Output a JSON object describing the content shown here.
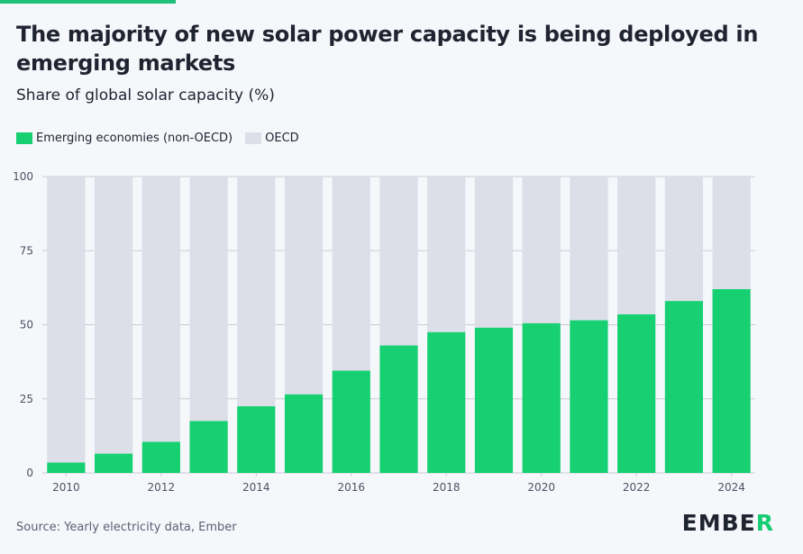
{
  "header": {
    "title": "The majority of new solar power capacity is being deployed in emerging markets",
    "subtitle": "Share of global solar capacity (%)"
  },
  "legend": {
    "series_a": "Emerging economies (non-OECD)",
    "series_b": "OECD"
  },
  "footer": {
    "source": "Source: Yearly electricity data, Ember",
    "logo_prefix": "EMBE",
    "logo_mark": "R"
  },
  "colors": {
    "emerging": "#16d072",
    "oecd": "#dcdee8",
    "accent": "#1ec07a",
    "grid": "#c9ccd6",
    "background": "#f5f7fb"
  },
  "chart_data": {
    "type": "bar",
    "stacked": true,
    "title": "The majority of new solar power capacity is being deployed in emerging markets",
    "ylabel": "Share of global solar capacity (%)",
    "xlabel": "",
    "ylim": [
      0,
      100
    ],
    "yticks": [
      0,
      25,
      50,
      75,
      100
    ],
    "xtick_labels": [
      "2010",
      "2012",
      "2014",
      "2016",
      "2018",
      "2020",
      "2022",
      "2024"
    ],
    "categories": [
      "2010",
      "2011",
      "2012",
      "2013",
      "2014",
      "2015",
      "2016",
      "2017",
      "2018",
      "2019",
      "2020",
      "2021",
      "2022",
      "2023",
      "2024"
    ],
    "series": [
      {
        "name": "Emerging economies (non-OECD)",
        "values": [
          3.5,
          6.5,
          10.5,
          17.5,
          22.5,
          26.5,
          34.5,
          43,
          47.5,
          49,
          50.5,
          51.5,
          53.5,
          58,
          62
        ]
      },
      {
        "name": "OECD",
        "values": [
          96.5,
          93.5,
          89.5,
          82.5,
          77.5,
          73.5,
          65.5,
          57,
          52.5,
          51,
          49.5,
          48.5,
          46.5,
          42,
          38
        ]
      }
    ],
    "legend_position": "top-left",
    "grid": true
  }
}
